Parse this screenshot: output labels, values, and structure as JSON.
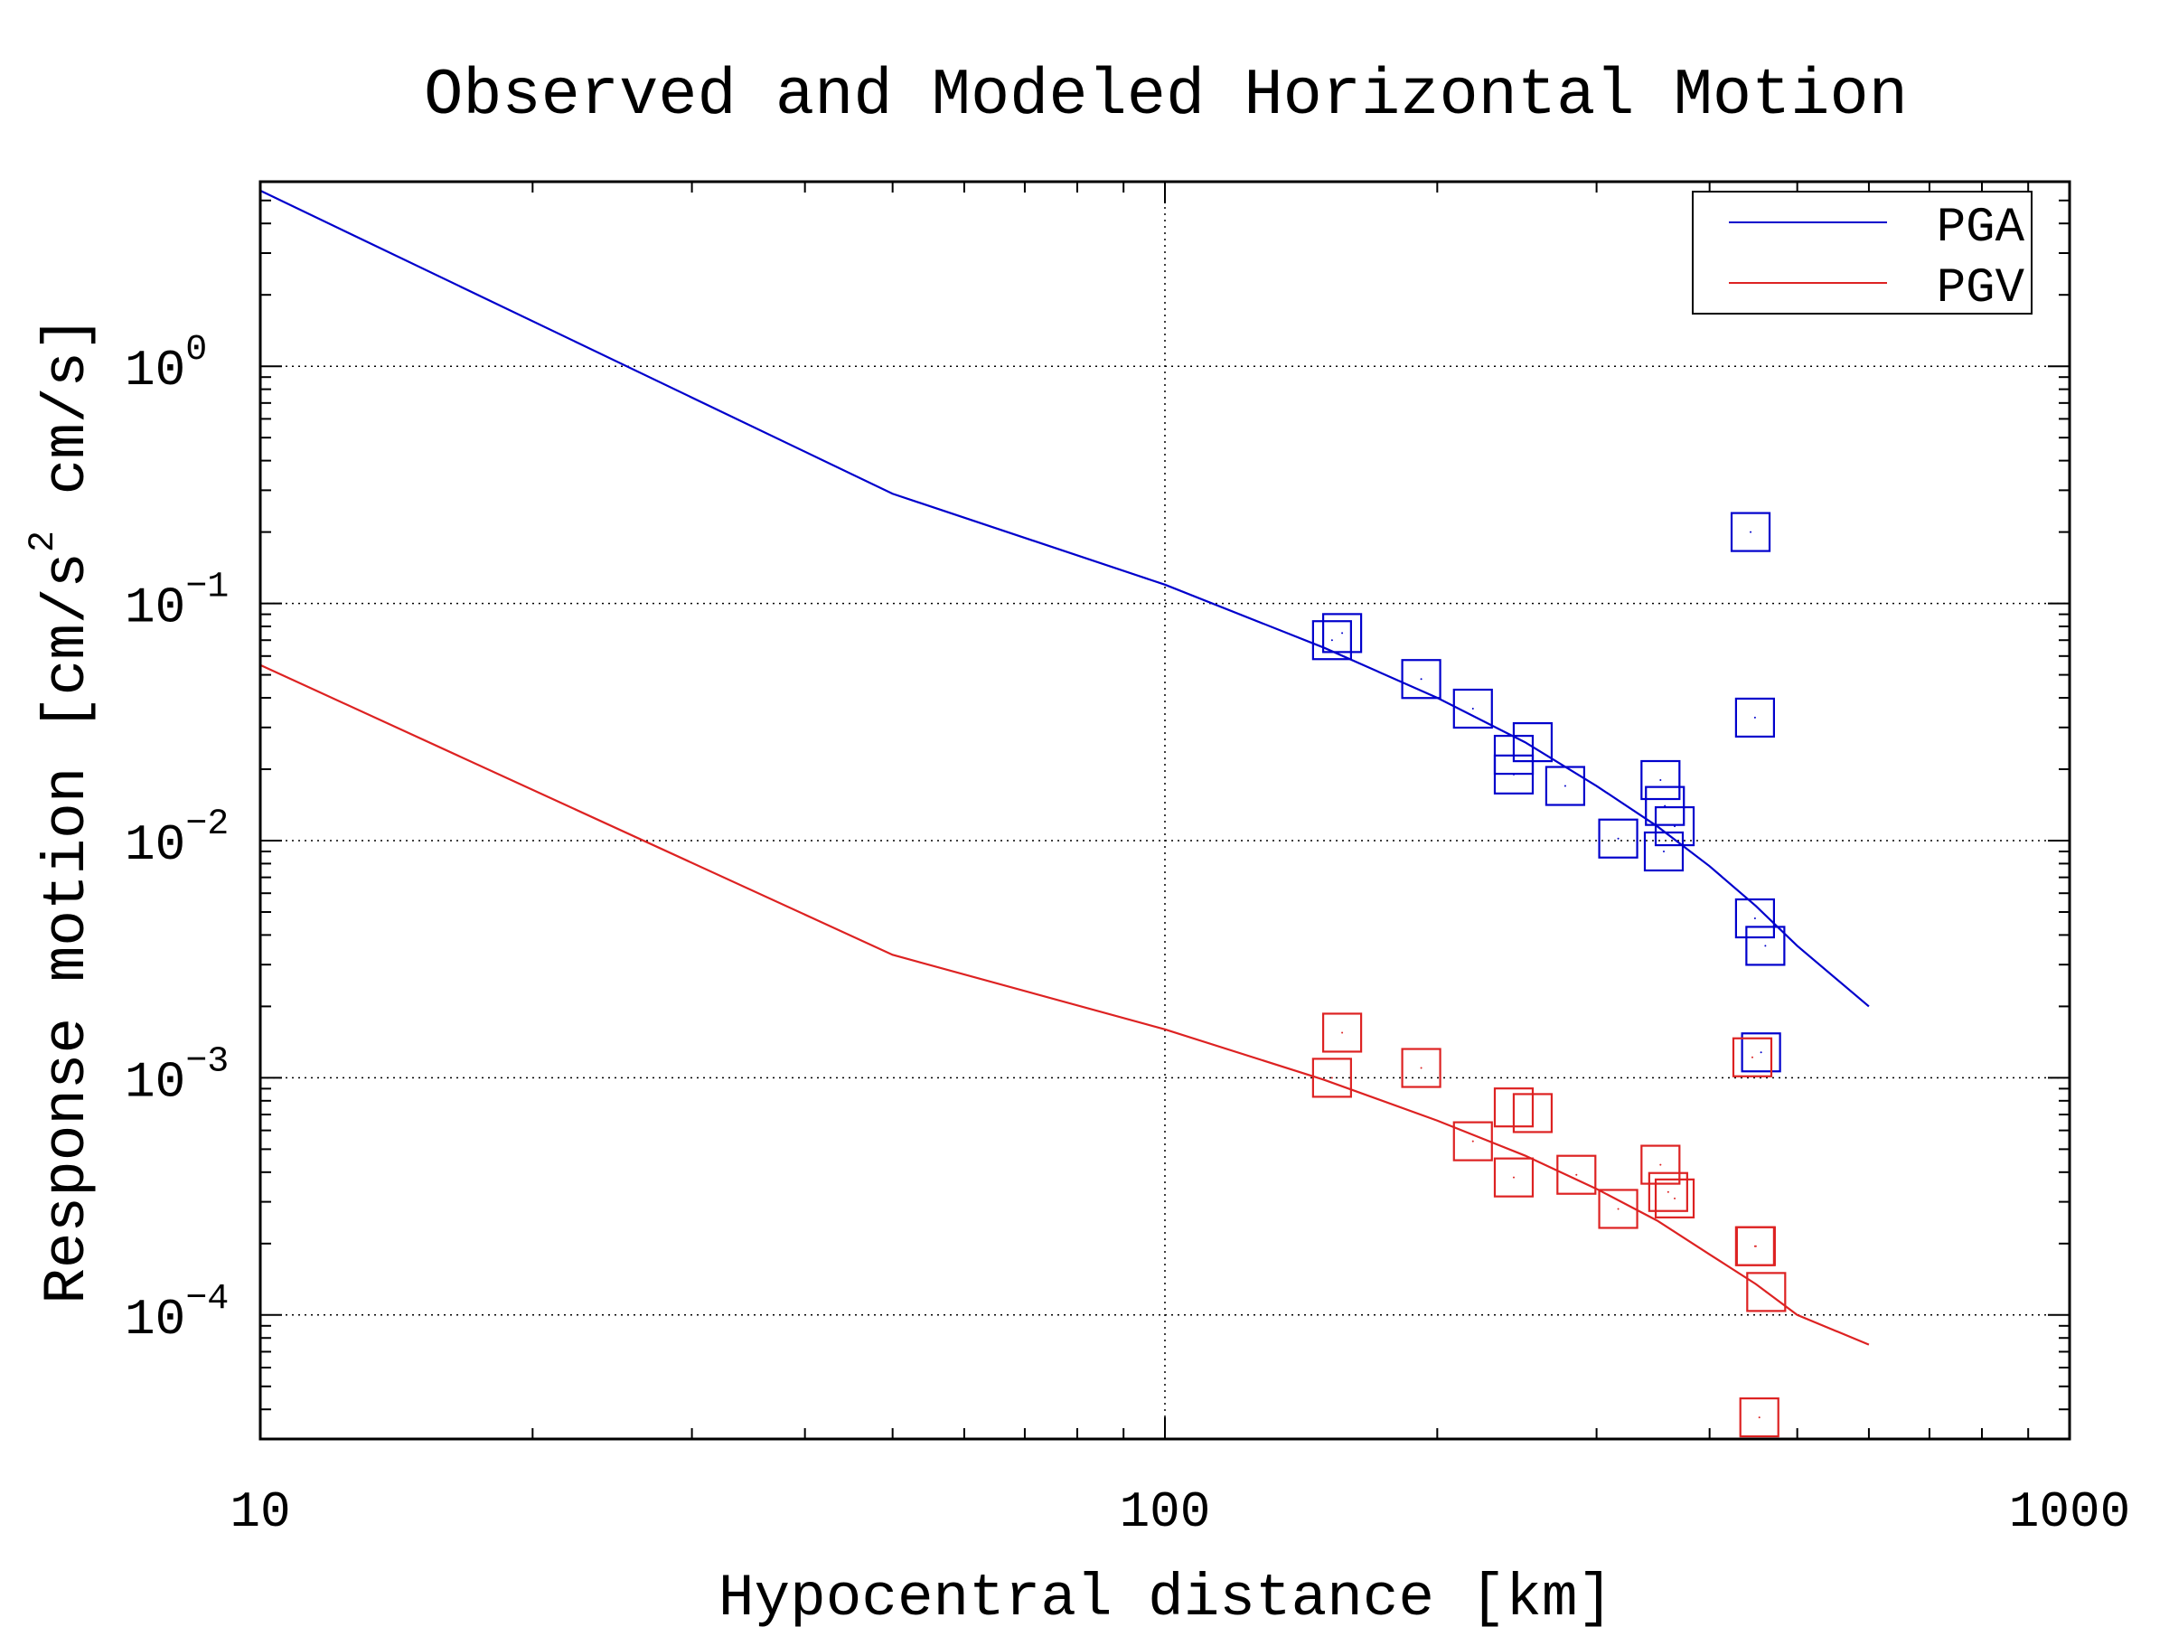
{
  "chart_data": {
    "type": "scatter",
    "title": "Observed and Modeled Horizontal Motion",
    "xlabel": "Hypocentral distance [km]",
    "ylabel_parts": [
      "Response motion [cm/s",
      "2",
      " cm/s]"
    ],
    "xscale": "log",
    "yscale": "log",
    "xlim": [
      10,
      1000
    ],
    "ylim": [
      3e-05,
      6
    ],
    "grid": true,
    "legend_position": "top-right",
    "x_ticks": [
      "10",
      "100",
      "1000"
    ],
    "y_ticks": [
      {
        "value": 1,
        "base": "10",
        "exp": "0"
      },
      {
        "value": 0.1,
        "base": "10",
        "exp": "−1"
      },
      {
        "value": 0.01,
        "base": "10",
        "exp": "−2"
      },
      {
        "value": 0.001,
        "base": "10",
        "exp": "−3"
      },
      {
        "value": 0.0001,
        "base": "10",
        "exp": "−4"
      }
    ],
    "series": [
      {
        "name": "PGA",
        "color": "#0000cc",
        "model_line": {
          "x": [
            10,
            50,
            100,
            150,
            200,
            250,
            300,
            350,
            400,
            450,
            500,
            600
          ],
          "y": [
            5.5,
            0.29,
            0.12,
            0.065,
            0.04,
            0.026,
            0.017,
            0.0115,
            0.0078,
            0.0053,
            0.0036,
            0.002
          ]
        },
        "observed": {
          "x": [
            153,
            157,
            192,
            219,
            243,
            243,
            255,
            277,
            317,
            353,
            357,
            366,
            356,
            444,
            449,
            449,
            461,
            456
          ],
          "y": [
            0.07,
            0.075,
            0.048,
            0.036,
            0.023,
            0.019,
            0.026,
            0.017,
            0.0102,
            0.018,
            0.014,
            0.0115,
            0.009,
            0.2,
            0.033,
            0.0047,
            0.0036,
            0.00128
          ]
        }
      },
      {
        "name": "PGV",
        "color": "#dd2222",
        "model_line": {
          "x": [
            10,
            50,
            100,
            150,
            200,
            250,
            300,
            350,
            400,
            450,
            500,
            600
          ],
          "y": [
            0.055,
            0.0033,
            0.0016,
            0.00098,
            0.00066,
            0.00047,
            0.00034,
            0.00025,
            0.00018,
            0.000135,
            0.0001,
            7.5e-05
          ]
        },
        "observed": {
          "x": [
            157,
            153,
            192,
            219,
            243,
            243,
            255,
            285,
            317,
            353,
            360,
            366,
            446,
            449,
            450,
            462,
            454
          ],
          "y": [
            0.00155,
            0.001,
            0.0011,
            0.00054,
            0.00038,
            0.00075,
            0.00071,
            0.00039,
            0.00028,
            0.00043,
            0.00033,
            0.00031,
            0.00122,
            0.000195,
            0.000195,
            0.000125,
            3.7e-05
          ]
        }
      }
    ]
  }
}
